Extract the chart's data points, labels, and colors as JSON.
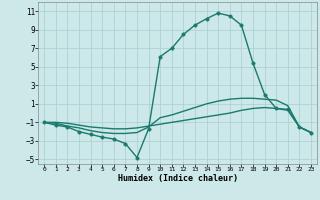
{
  "xlabel": "Humidex (Indice chaleur)",
  "x": [
    0,
    1,
    2,
    3,
    4,
    5,
    6,
    7,
    8,
    9,
    10,
    11,
    12,
    13,
    14,
    15,
    16,
    17,
    18,
    19,
    20,
    21,
    22,
    23
  ],
  "line1": [
    -1,
    -1.3,
    -1.5,
    -2.0,
    -2.3,
    -2.6,
    -2.8,
    -3.3,
    -4.8,
    -1.7,
    6.1,
    7.0,
    8.5,
    9.5,
    10.2,
    10.8,
    10.5,
    9.5,
    5.4,
    2.0,
    0.5,
    0.4,
    -1.5,
    -2.1
  ],
  "line2": [
    -1,
    -1.1,
    -1.4,
    -1.6,
    -1.9,
    -2.1,
    -2.2,
    -2.2,
    -2.1,
    -1.5,
    -0.5,
    -0.2,
    0.2,
    0.6,
    1.0,
    1.3,
    1.5,
    1.6,
    1.6,
    1.5,
    1.4,
    0.8,
    -1.5,
    -2.1
  ],
  "line3": [
    -1,
    -1.0,
    -1.1,
    -1.3,
    -1.5,
    -1.6,
    -1.7,
    -1.7,
    -1.6,
    -1.4,
    -1.2,
    -1.0,
    -0.8,
    -0.6,
    -0.4,
    -0.2,
    0.0,
    0.3,
    0.5,
    0.6,
    0.5,
    0.3,
    -1.5,
    -2.1
  ],
  "line_color": "#1a7a6e",
  "bg_color": "#cce8e8",
  "grid_color": "#aacece",
  "ylim": [
    -5.5,
    12
  ],
  "yticks": [
    -5,
    -3,
    -1,
    1,
    3,
    5,
    7,
    9,
    11
  ],
  "xticks": [
    0,
    1,
    2,
    3,
    4,
    5,
    6,
    7,
    8,
    9,
    10,
    11,
    12,
    13,
    14,
    15,
    16,
    17,
    18,
    19,
    20,
    21,
    22,
    23
  ],
  "marker_size": 2.5,
  "line_width": 1.0
}
